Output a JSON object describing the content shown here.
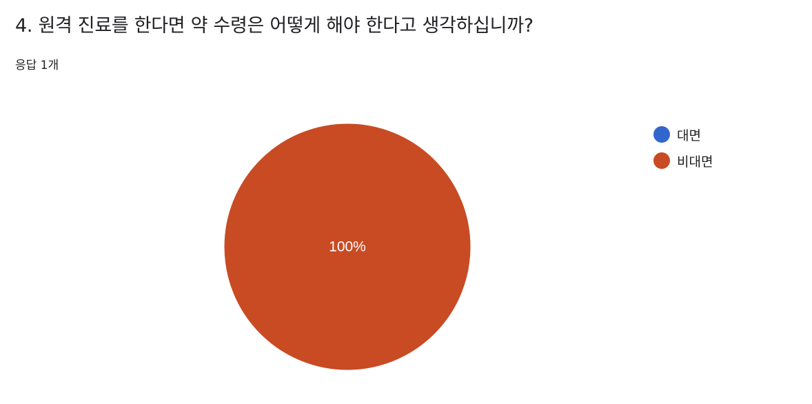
{
  "question": {
    "title": "4. 원격 진료를 한다면 약 수령은 어떻게 해야 한다고 생각하십니까?",
    "response_count": "응답 1개"
  },
  "colors": {
    "series_1": "#3366cc",
    "series_2": "#c84b24",
    "slice_label": "#ffffff"
  },
  "chart_data": {
    "type": "pie",
    "title": "4. 원격 진료를 한다면 약 수령은 어떻게 해야 한다고 생각하십니까?",
    "categories": [
      "대면",
      "비대면"
    ],
    "values": [
      0,
      1
    ],
    "percent_labels": [
      "0%",
      "100%"
    ],
    "legend_position": "right"
  }
}
